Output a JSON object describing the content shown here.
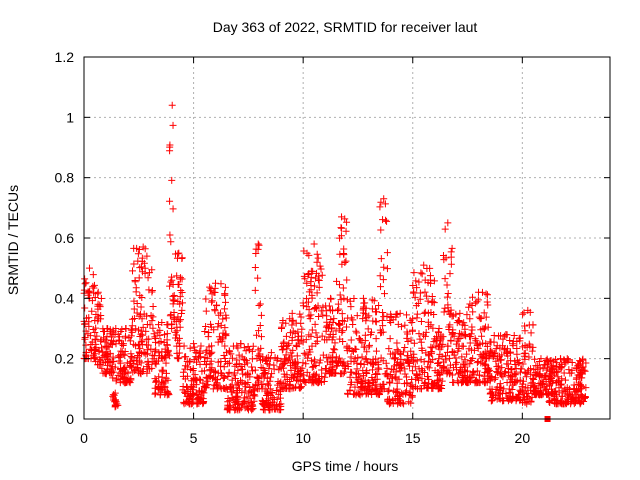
{
  "chart_data": {
    "type": "scatter",
    "title": "Day 363 of 2022, SRMTID for receiver laut",
    "xlabel": "GPS time / hours",
    "ylabel": "SRMTID / TECUs",
    "xlim": [
      0,
      24
    ],
    "ylim": [
      0,
      1.2
    ],
    "xticks": [
      0,
      5,
      10,
      15,
      20
    ],
    "xtick_labels": [
      "0",
      "5",
      "10",
      "15",
      "20"
    ],
    "yticks": [
      0,
      0.2,
      0.4,
      0.6,
      0.8,
      1,
      1.2
    ],
    "ytick_labels": [
      "0",
      "0.2",
      "0.4",
      "0.6",
      "0.8",
      "1",
      "1.2"
    ],
    "grid": true,
    "marker": "+",
    "series_color": "#ff0000",
    "point_summary": [
      {
        "start": 0.0,
        "end": 0.5,
        "low": 0.2,
        "high": 0.5
      },
      {
        "start": 0.5,
        "end": 0.8,
        "low": 0.18,
        "high": 0.42
      },
      {
        "start": 0.8,
        "end": 1.3,
        "low": 0.15,
        "high": 0.3
      },
      {
        "start": 1.3,
        "end": 1.6,
        "low": 0.04,
        "high": 0.3
      },
      {
        "start": 1.6,
        "end": 2.2,
        "low": 0.12,
        "high": 0.3
      },
      {
        "start": 2.2,
        "end": 3.2,
        "low": 0.15,
        "high": 0.57
      },
      {
        "start": 3.2,
        "end": 3.9,
        "low": 0.08,
        "high": 0.32
      },
      {
        "start": 3.9,
        "end": 4.15,
        "low": 0.3,
        "high": 1.04
      },
      {
        "start": 4.15,
        "end": 4.5,
        "low": 0.2,
        "high": 0.55
      },
      {
        "start": 4.5,
        "end": 5.5,
        "low": 0.05,
        "high": 0.25
      },
      {
        "start": 5.5,
        "end": 6.5,
        "low": 0.1,
        "high": 0.45
      },
      {
        "start": 6.5,
        "end": 7.8,
        "low": 0.03,
        "high": 0.25
      },
      {
        "start": 7.8,
        "end": 8.1,
        "low": 0.1,
        "high": 0.58
      },
      {
        "start": 8.1,
        "end": 9.0,
        "low": 0.03,
        "high": 0.22
      },
      {
        "start": 9.0,
        "end": 10.0,
        "low": 0.1,
        "high": 0.35
      },
      {
        "start": 10.0,
        "end": 11.0,
        "low": 0.12,
        "high": 0.58
      },
      {
        "start": 11.0,
        "end": 11.5,
        "low": 0.15,
        "high": 0.4
      },
      {
        "start": 11.5,
        "end": 12.0,
        "low": 0.15,
        "high": 0.67
      },
      {
        "start": 12.0,
        "end": 13.5,
        "low": 0.08,
        "high": 0.4
      },
      {
        "start": 13.5,
        "end": 13.85,
        "low": 0.1,
        "high": 0.73
      },
      {
        "start": 13.85,
        "end": 15.0,
        "low": 0.05,
        "high": 0.35
      },
      {
        "start": 15.0,
        "end": 16.0,
        "low": 0.1,
        "high": 0.51
      },
      {
        "start": 16.0,
        "end": 16.4,
        "low": 0.1,
        "high": 0.3
      },
      {
        "start": 16.4,
        "end": 16.8,
        "low": 0.15,
        "high": 0.65
      },
      {
        "start": 16.8,
        "end": 17.5,
        "low": 0.12,
        "high": 0.35
      },
      {
        "start": 17.5,
        "end": 18.5,
        "low": 0.12,
        "high": 0.42
      },
      {
        "start": 18.5,
        "end": 20.0,
        "low": 0.06,
        "high": 0.28
      },
      {
        "start": 20.0,
        "end": 20.5,
        "low": 0.05,
        "high": 0.36
      },
      {
        "start": 20.5,
        "end": 21.2,
        "low": 0.08,
        "high": 0.2
      },
      {
        "start": 21.2,
        "end": 22.9,
        "low": 0.05,
        "high": 0.2
      }
    ],
    "isolated_points": [
      {
        "x": 21.15,
        "y": 0.0
      }
    ]
  }
}
